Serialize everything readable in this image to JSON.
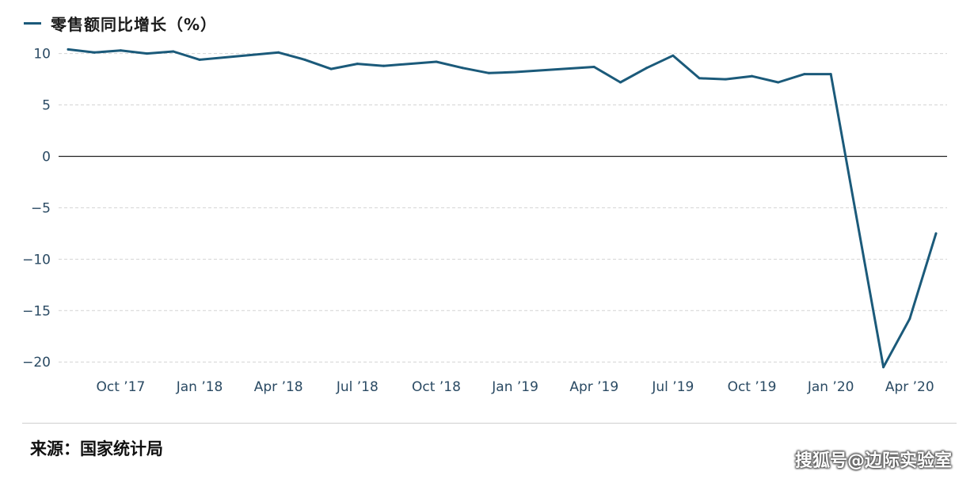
{
  "chart_data": {
    "type": "line",
    "series": [
      {
        "name": "零售额同比增长（%）",
        "color": "#1b5a7a",
        "points": [
          {
            "x": "2017-08",
            "y": 10.4
          },
          {
            "x": "2017-09",
            "y": 10.1
          },
          {
            "x": "2017-10",
            "y": 10.3
          },
          {
            "x": "2017-11",
            "y": 10.0
          },
          {
            "x": "2017-12",
            "y": 10.2
          },
          {
            "x": "2018-01",
            "y": 9.4
          },
          {
            "x": "2018-04",
            "y": 10.1
          },
          {
            "x": "2018-05",
            "y": 9.4
          },
          {
            "x": "2018-06",
            "y": 8.5
          },
          {
            "x": "2018-07",
            "y": 9.0
          },
          {
            "x": "2018-08",
            "y": 8.8
          },
          {
            "x": "2018-10",
            "y": 9.2
          },
          {
            "x": "2018-11",
            "y": 8.6
          },
          {
            "x": "2018-12",
            "y": 8.1
          },
          {
            "x": "2019-01",
            "y": 8.2
          },
          {
            "x": "2019-04",
            "y": 8.7
          },
          {
            "x": "2019-05",
            "y": 7.2
          },
          {
            "x": "2019-06",
            "y": 8.6
          },
          {
            "x": "2019-07",
            "y": 9.8
          },
          {
            "x": "2019-08",
            "y": 7.6
          },
          {
            "x": "2019-09",
            "y": 7.5
          },
          {
            "x": "2019-10",
            "y": 7.8
          },
          {
            "x": "2019-11",
            "y": 7.2
          },
          {
            "x": "2019-12",
            "y": 8.0
          },
          {
            "x": "2020-01",
            "y": 8.0
          },
          {
            "x": "2020-03",
            "y": -20.5
          },
          {
            "x": "2020-04",
            "y": -15.8
          },
          {
            "x": "2020-05",
            "y": -7.5
          }
        ]
      }
    ],
    "x_ticks": [
      {
        "x": "2017-10",
        "label": "Oct ’17"
      },
      {
        "x": "2018-01",
        "label": "Jan ’18"
      },
      {
        "x": "2018-04",
        "label": "Apr ’18"
      },
      {
        "x": "2018-07",
        "label": "Jul ’18"
      },
      {
        "x": "2018-10",
        "label": "Oct ’18"
      },
      {
        "x": "2019-01",
        "label": "Jan ’19"
      },
      {
        "x": "2019-04",
        "label": "Apr ’19"
      },
      {
        "x": "2019-07",
        "label": "Jul ’19"
      },
      {
        "x": "2019-10",
        "label": "Oct ’19"
      },
      {
        "x": "2020-01",
        "label": "Jan ’20"
      },
      {
        "x": "2020-04",
        "label": "Apr ’20"
      }
    ],
    "y_ticks": [
      {
        "value": 10,
        "label": "10"
      },
      {
        "value": 5,
        "label": "5"
      },
      {
        "value": 0,
        "label": "0"
      },
      {
        "value": -5,
        "label": "−5"
      },
      {
        "value": -10,
        "label": "−10"
      },
      {
        "value": -15,
        "label": "−15"
      },
      {
        "value": -20,
        "label": "−20"
      }
    ],
    "xlim": [
      "2017-08",
      "2020-05"
    ],
    "ylim": [
      -20.7,
      10.5
    ],
    "grid": "horizontal dashed",
    "legend_position": "top-left",
    "title": "",
    "xlabel": "",
    "ylabel": ""
  },
  "legend": {
    "label": "零售额同比增长（%）"
  },
  "footer": {
    "source": "来源：国家统计局",
    "watermark": "搜狐号@边际实验室"
  },
  "colors": {
    "line": "#1b5a7a",
    "grid": "#d4d4d4",
    "zero": "#222222",
    "tick": "#2a4a63"
  }
}
